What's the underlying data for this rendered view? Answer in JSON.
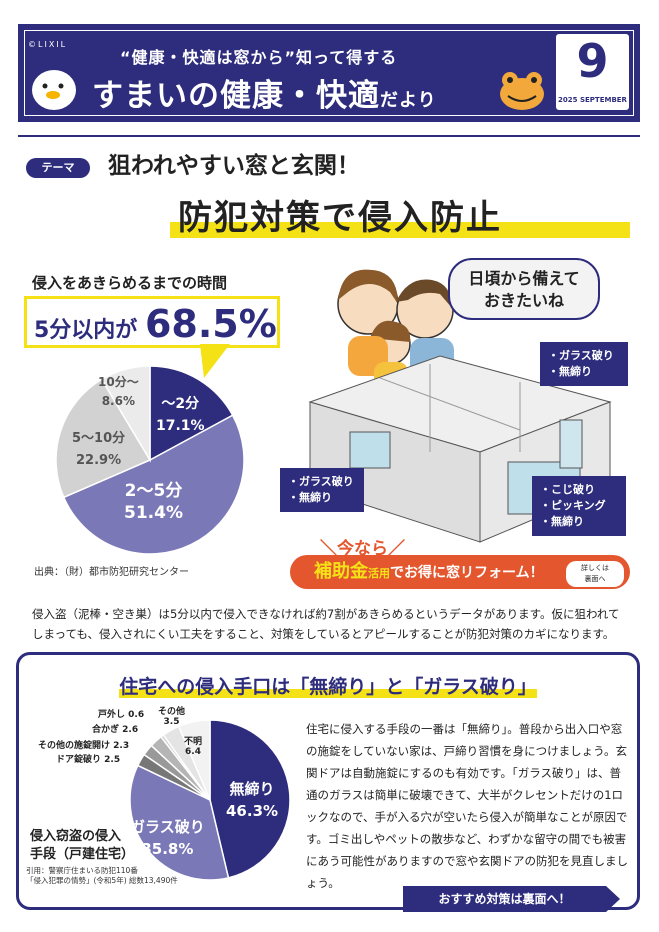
{
  "header": {
    "logo": "©LIXIL",
    "subtitle": "“健康・快適は窓から”知って得する",
    "title_main": "すまいの健康・快適",
    "title_suffix": "だより",
    "month": "9",
    "month_sub": "2025 SEPTEMBER"
  },
  "theme": {
    "badge": "テーマ",
    "line1": "狙われやすい窓と玄関！",
    "line2": "防犯対策で侵入防止"
  },
  "time_section": {
    "title": "侵入をあきらめるまでの時間",
    "highlight_prefix": "5分以内が",
    "highlight_value": "68.5%",
    "source": "出典：（財）都市防犯研究センター"
  },
  "illustration": {
    "bubble": "日頃から備えて\nおきたいね",
    "callout_top_right": [
      "・ガラス破り",
      "・無締り"
    ],
    "callout_left": [
      "・ガラス破り",
      "・無締り"
    ],
    "callout_bottom_right": [
      "・こじ破り",
      "・ピッキング",
      "・無締り"
    ]
  },
  "subsidy": {
    "top": "＼今なら／",
    "emphasis": "補助金",
    "small": "活用",
    "text": "でお得に窓リフォーム！",
    "detail": "詳しくは\n裏面へ"
  },
  "paragraph1": "侵入盗（泥棒・空き巣）は5分以内で侵入できなければ約7割があきらめるというデータがあります。仮に狙われてしまっても、侵入されにくい工夫をすること、対策をしているとアピールすることが防犯対策のカギになります。",
  "section2": {
    "title": "住宅への侵入手口は「無締り」と「ガラス破り」",
    "paragraph": "住宅に侵入する手段の一番は「無締り」。普段から出入口や窓の施錠をしていない家は、戸締り習慣を身につけましょう。玄関ドアは自動施錠にするのも有効です。「ガラス破り」は、普通のガラスは簡単に破壊できて、大半がクレセントだけの1ロックなので、手が入る穴が空いたら侵入が簡単なことが原因です。ゴミ出しやペットの散歩など、わずかな留守の間でも被害にあう可能性がありますので窓や玄関ドアの防犯を見直しましょう。",
    "method_title_1": "侵入窃盗の侵入",
    "method_title_2": "手段（戸建住宅）",
    "source_1": "引用：警察庁住まいる防犯110番",
    "source_2": "「侵入犯罪の情勢」(令和5年) 総数13,490件",
    "recommend": "おすすめ対策は裏面へ！"
  },
  "chart_data": [
    {
      "type": "pie",
      "title": "侵入をあきらめるまでの時間",
      "labels": [
        "～2分",
        "2～5分",
        "5～10分",
        "10分～"
      ],
      "values": [
        17.1,
        51.4,
        22.9,
        8.6
      ],
      "colors": [
        "#2d2c7d",
        "#7b78b8",
        "#d2d2d2",
        "#ebebeb"
      ]
    },
    {
      "type": "pie",
      "title": "侵入窃盗の侵入手段（戸建住宅）",
      "labels": [
        "無締り",
        "ガラス破り",
        "ドア錠破り",
        "その他の施錠開け",
        "合かぎ",
        "戸外し",
        "その他",
        "不明"
      ],
      "values": [
        46.3,
        35.8,
        2.5,
        2.3,
        2.6,
        0.6,
        3.5,
        6.4
      ],
      "colors": [
        "#2d2c7d",
        "#7b78b8",
        "#777777",
        "#999999",
        "#b5b5b5",
        "#d0d0d0",
        "#e4e4e4",
        "#f2f2f2"
      ]
    }
  ]
}
